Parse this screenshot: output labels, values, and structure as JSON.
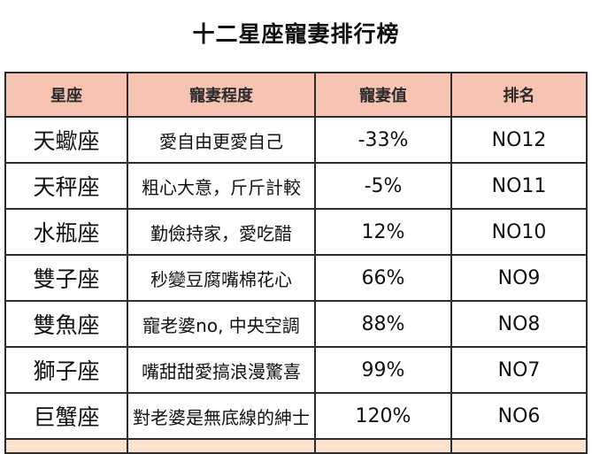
{
  "title": "十二星座寵妻排行榜",
  "headers": {
    "sign": "星座",
    "degree": "寵妻程度",
    "value": "寵妻值",
    "rank": "排名"
  },
  "rows": [
    {
      "sign": "天蠍座",
      "desc": "愛自由更愛自己",
      "value": "-33%",
      "rank": "NO12"
    },
    {
      "sign": "天秤座",
      "desc": "粗心大意，斤斤計較",
      "value": "-5%",
      "rank": "NO11"
    },
    {
      "sign": "水瓶座",
      "desc": "勤儉持家，愛吃醋",
      "value": "12%",
      "rank": "NO10"
    },
    {
      "sign": "雙子座",
      "desc": "秒變豆腐嘴棉花心",
      "value": "66%",
      "rank": "NO9"
    },
    {
      "sign": "雙魚座",
      "desc": "寵老婆no, 中央空調",
      "value": "88%",
      "rank": "NO8"
    },
    {
      "sign": "獅子座",
      "desc": "嘴甜甜愛搞浪漫驚喜",
      "value": "99%",
      "rank": "NO7"
    },
    {
      "sign": "巨蟹座",
      "desc": "對老婆是無底線的紳士",
      "value": "120%",
      "rank": "NO6"
    }
  ],
  "colors": {
    "header_bg": "#f7c3b3",
    "border": "#2c2c2c",
    "cut_row_bg": "#fbe2cd"
  }
}
